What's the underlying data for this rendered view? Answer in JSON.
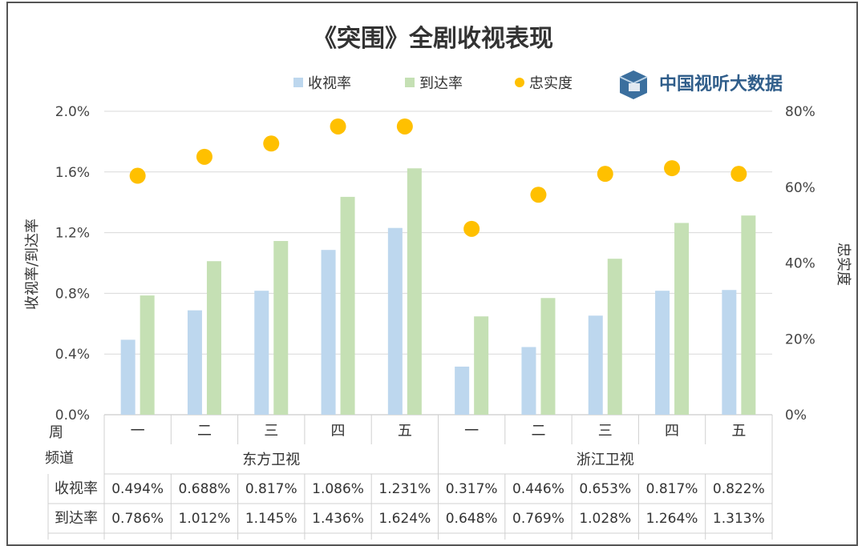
{
  "chart_data": {
    "type": "bar",
    "title": "《突围》全剧收视表现",
    "brand": "中国视听大数据",
    "ylabel": "收视率/到达率",
    "y2label": "忠实度",
    "ylim": [
      0,
      0.02
    ],
    "y2lim": [
      0,
      0.8
    ],
    "yticks": [
      "0.0%",
      "0.4%",
      "0.8%",
      "1.2%",
      "1.6%",
      "2.0%"
    ],
    "y2ticks": [
      "0%",
      "20%",
      "40%",
      "60%",
      "80%"
    ],
    "grid": true,
    "legend_position": "top",
    "row_label_week": "周",
    "row_label_channel": "频道",
    "categories": [
      "一",
      "二",
      "三",
      "四",
      "五",
      "一",
      "二",
      "三",
      "四",
      "五"
    ],
    "groups": [
      {
        "name": "东方卫视",
        "count": 5
      },
      {
        "name": "浙江卫视",
        "count": 5
      }
    ],
    "series": [
      {
        "name": "收视率",
        "axis": "left",
        "kind": "bar",
        "color": "#bdd7ee",
        "values": [
          0.00494,
          0.00688,
          0.00817,
          0.01086,
          0.01231,
          0.00317,
          0.00446,
          0.00653,
          0.00817,
          0.00822
        ],
        "labels": [
          "0.494%",
          "0.688%",
          "0.817%",
          "1.086%",
          "1.231%",
          "0.317%",
          "0.446%",
          "0.653%",
          "0.817%",
          "0.822%"
        ]
      },
      {
        "name": "到达率",
        "axis": "left",
        "kind": "bar",
        "color": "#c5e0b4",
        "values": [
          0.00786,
          0.01012,
          0.01145,
          0.01436,
          0.01624,
          0.00648,
          0.00769,
          0.01028,
          0.01264,
          0.01313
        ],
        "labels": [
          "0.786%",
          "1.012%",
          "1.145%",
          "1.436%",
          "1.624%",
          "0.648%",
          "0.769%",
          "1.028%",
          "1.264%",
          "1.313%"
        ]
      },
      {
        "name": "忠实度",
        "axis": "right",
        "kind": "scatter",
        "color": "#ffc000",
        "values": [
          0.63,
          0.68,
          0.715,
          0.76,
          0.76,
          0.49,
          0.58,
          0.635,
          0.65,
          0.635
        ]
      }
    ]
  }
}
